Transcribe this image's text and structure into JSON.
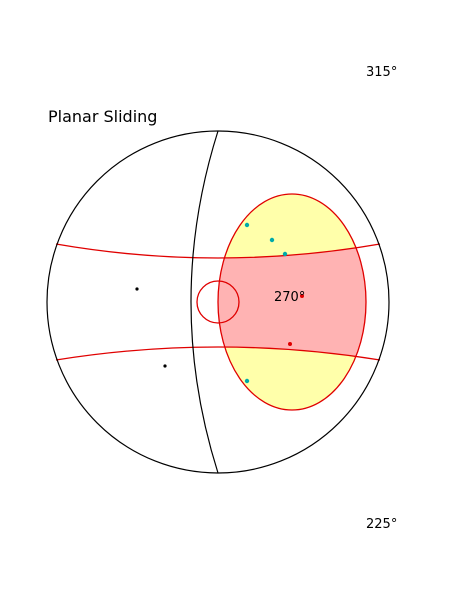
{
  "title": "Planar Sliding",
  "direction_labels": {
    "top_right": "315°",
    "center": "270°",
    "bottom_right": "225°"
  },
  "colors": {
    "primitive_circle": "#000000",
    "great_circle": "#000000",
    "friction_boundary": "#e00000",
    "daylight_envelope_fill": "#ffffaa",
    "critical_zone_fill": "#ffb3b3",
    "pole_marker": "#00aaaa",
    "critical_pole_marker": "#e00000",
    "point_marker": "#000000"
  },
  "legend": []
}
